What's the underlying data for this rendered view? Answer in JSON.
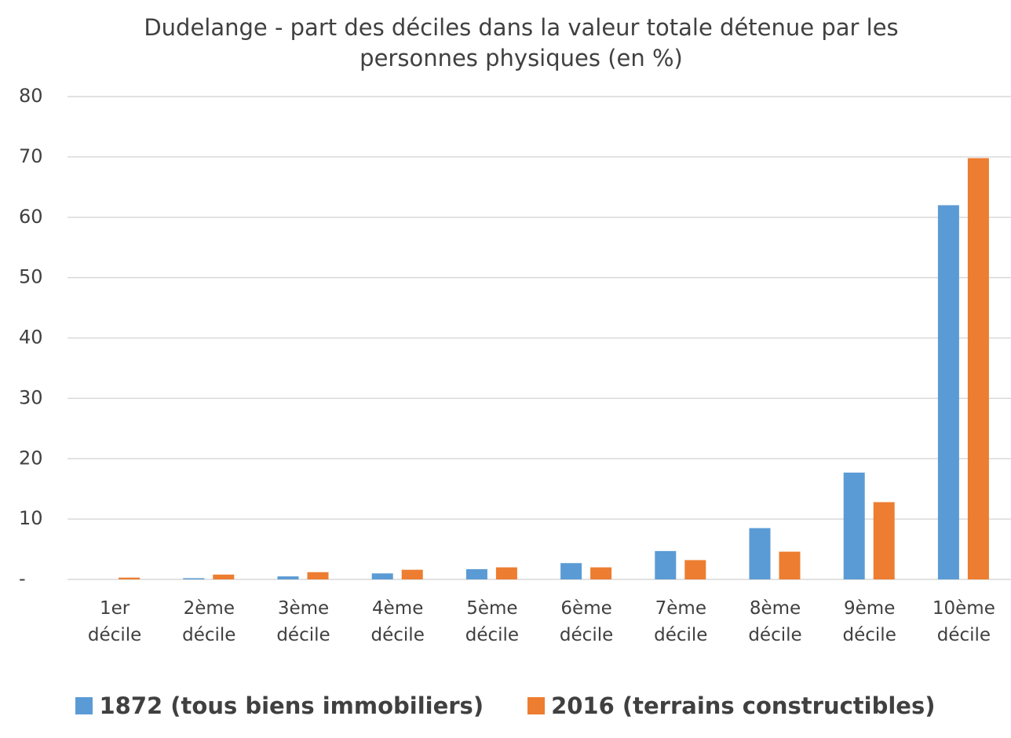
{
  "chart_data": {
    "type": "bar",
    "title": "Dudelange - part des déciles dans la valeur totale détenue par les personnes physiques (en %)",
    "categories": [
      "1er décile",
      "2ème décile",
      "3ème décile",
      "4ème décile",
      "5ème décile",
      "6ème décile",
      "7ème décile",
      "8ème décile",
      "9ème décile",
      "10ème décile"
    ],
    "series": [
      {
        "name": "1872 (tous biens immobiliers)",
        "color": "#5b9bd5",
        "values": [
          0,
          0.2,
          0.5,
          1.0,
          1.7,
          2.7,
          4.7,
          8.5,
          17.7,
          62.0
        ]
      },
      {
        "name": "2016 (terrains constructibles)",
        "color": "#ed7d31",
        "values": [
          0.3,
          0.8,
          1.2,
          1.6,
          2.0,
          2.0,
          3.2,
          4.6,
          12.8,
          69.8
        ]
      }
    ],
    "ylim": [
      0,
      80
    ],
    "yticks": [
      {
        "value": 0,
        "label": "-"
      },
      10,
      20,
      30,
      40,
      50,
      60,
      70,
      80
    ],
    "grid": true,
    "legend": "bottom"
  }
}
